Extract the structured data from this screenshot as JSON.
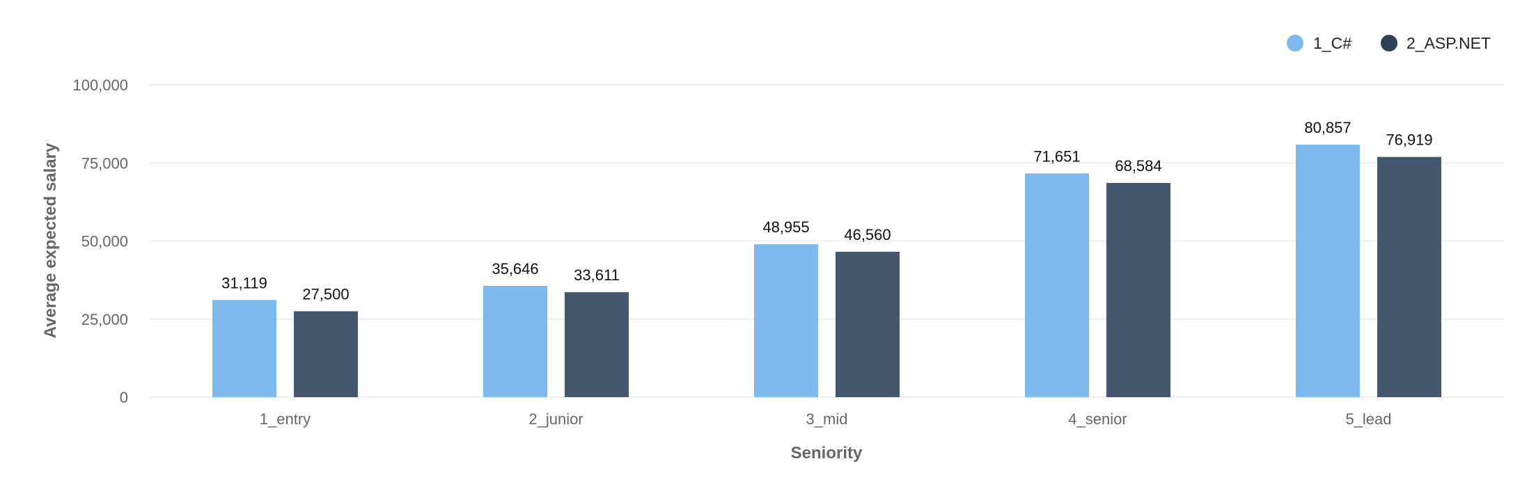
{
  "chart_data": {
    "type": "bar",
    "title": "",
    "xlabel": "Seniority",
    "ylabel": "Average expected salary",
    "categories": [
      "1_entry",
      "2_junior",
      "3_mid",
      "4_senior",
      "5_lead"
    ],
    "series": [
      {
        "name": "1_C#",
        "color": "#7db9ec",
        "values": [
          31119,
          35646,
          48955,
          71651,
          80857
        ]
      },
      {
        "name": "2_ASP.NET",
        "color": "#44576d",
        "values": [
          27500,
          33611,
          46560,
          68584,
          76919
        ]
      }
    ],
    "ylim": [
      0,
      100000
    ],
    "yticks": [
      0,
      25000,
      50000,
      75000,
      100000
    ],
    "ytick_labels": [
      "0",
      "25,000",
      "50,000",
      "75,000",
      "100,000"
    ],
    "value_labels": [
      [
        "31,119",
        "35,646",
        "48,955",
        "71,651",
        "80,857"
      ],
      [
        "27,500",
        "33,611",
        "46,560",
        "68,584",
        "76,919"
      ]
    ],
    "grid": true,
    "legend_position": "top-right",
    "legend_marker_colors": [
      "#7db9ec",
      "#2f4157"
    ]
  }
}
